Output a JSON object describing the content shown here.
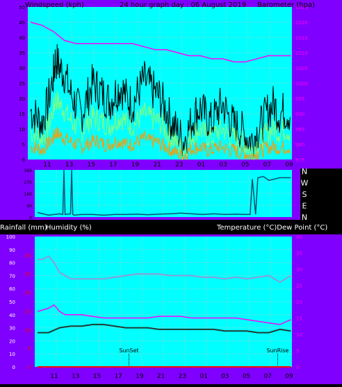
{
  "header": {
    "left_title": "Windspeed (kph)",
    "center_title": "24 hour graph day : 06 August 2019",
    "right_title": "Barometer (hpa)"
  },
  "colors": {
    "frame": "#8000ff",
    "plot_bg": "#00ffff",
    "grid": "#7fd8d8",
    "gust": "#000000",
    "wind": "#80ff80",
    "wind_low": "#ff9900",
    "baro": "#ff00ff",
    "dir": "#0b4f6c",
    "temp": "#8c9bd8",
    "dew": "#1f3a33",
    "humidity": "#ff00ff",
    "rain": "#ff0000",
    "tick_left": "#ffffff",
    "tick_red": "#ff0000"
  },
  "chart_data": [
    {
      "type": "line",
      "name": "wind-barometer",
      "x_ticks": [
        "11",
        "13",
        "15",
        "17",
        "19",
        "21",
        "23",
        "01",
        "03",
        "05",
        "07",
        "09"
      ],
      "y_left_range": [
        0,
        50
      ],
      "y_left_ticks": [
        "0",
        "5",
        "10",
        "15",
        "20",
        "25",
        "30",
        "35",
        "40",
        "45",
        "50"
      ],
      "y_right_range": [
        975,
        1025
      ],
      "y_right_ticks": [
        "975",
        "980",
        "985",
        "990",
        "995",
        "1000",
        "1005",
        "1010",
        "1015",
        "1020",
        "1025"
      ],
      "grid": true,
      "series": [
        {
          "key": "gust",
          "hours": [
            0,
            0.5,
            1,
            1.5,
            2,
            2.2,
            2.6,
            3,
            3.5,
            4,
            4.5,
            5,
            5.5,
            6,
            6.5,
            7,
            7.5,
            8,
            8.5,
            9,
            9.5,
            10,
            10.5,
            11,
            11.5,
            12,
            12.5,
            13,
            13.5,
            14,
            14.5,
            15,
            15.5,
            16,
            16.5,
            17,
            17.5,
            18,
            18.5,
            19,
            19.5,
            20,
            20.5,
            21,
            21.5,
            22,
            22.5,
            23
          ],
          "values": [
            16,
            14,
            12,
            18,
            27,
            33,
            30,
            28,
            22,
            18,
            15,
            20,
            25,
            23,
            21,
            19,
            22,
            24,
            20,
            18,
            22,
            26,
            24,
            22,
            20,
            16,
            12,
            9,
            6,
            10,
            15,
            17,
            14,
            12,
            16,
            18,
            14,
            11,
            10,
            8,
            6,
            9,
            12,
            16,
            18,
            15,
            16,
            15
          ]
        },
        {
          "key": "wind",
          "hours": [
            0,
            0.5,
            1,
            1.5,
            2,
            2.2,
            2.6,
            3,
            3.5,
            4,
            4.5,
            5,
            5.5,
            6,
            6.5,
            7,
            7.5,
            8,
            8.5,
            9,
            9.5,
            10,
            10.5,
            11,
            11.5,
            12,
            12.5,
            13,
            13.5,
            14,
            14.5,
            15,
            15.5,
            16,
            16.5,
            17,
            17.5,
            18,
            18.5,
            19,
            19.5,
            20,
            20.5,
            21,
            21.5,
            22,
            22.5,
            23
          ],
          "values": [
            9,
            8,
            7,
            10,
            16,
            20,
            18,
            16,
            13,
            11,
            9,
            12,
            14,
            13,
            12,
            11,
            13,
            14,
            12,
            11,
            13,
            15,
            14,
            13,
            12,
            9,
            7,
            5,
            3,
            6,
            9,
            10,
            8,
            7,
            9,
            10,
            8,
            7,
            6,
            5,
            3,
            5,
            7,
            9,
            10,
            9,
            10,
            9
          ]
        },
        {
          "key": "wind_low",
          "hours": [
            0,
            0.5,
            1,
            1.5,
            2,
            2.2,
            2.6,
            3,
            3.5,
            4,
            4.5,
            5,
            5.5,
            6,
            6.5,
            7,
            7.5,
            8,
            8.5,
            9,
            9.5,
            10,
            10.5,
            11,
            11.5,
            12,
            12.5,
            13,
            13.5,
            14,
            14.5,
            15,
            15.5,
            16,
            16.5,
            17,
            17.5,
            18,
            18.5,
            19,
            19.5,
            20,
            20.5,
            21,
            21.5,
            22,
            22.5,
            23
          ],
          "values": [
            4,
            4,
            3,
            5,
            7,
            9,
            8,
            7,
            6,
            5,
            4,
            5,
            6,
            6,
            5,
            5,
            6,
            6,
            5,
            5,
            6,
            7,
            6,
            6,
            5,
            4,
            3,
            2,
            1,
            3,
            4,
            4,
            3,
            3,
            4,
            4,
            3,
            3,
            2,
            2,
            1,
            2,
            3,
            4,
            4,
            4,
            4,
            4
          ]
        },
        {
          "key": "baro",
          "hours": [
            0,
            1,
            2,
            3,
            4,
            5,
            6,
            7,
            8,
            9,
            10,
            11,
            12,
            13,
            14,
            15,
            16,
            17,
            18,
            19,
            20,
            21,
            22,
            23
          ],
          "values": [
            1020,
            1019,
            1017,
            1014,
            1013,
            1013,
            1013,
            1013,
            1013,
            1013,
            1012,
            1011,
            1011,
            1010,
            1009,
            1009,
            1008,
            1008,
            1007,
            1007,
            1008,
            1009,
            1009,
            1009
          ]
        }
      ]
    },
    {
      "type": "line",
      "name": "wind-direction",
      "x_ticks": [
        "11",
        "13",
        "15",
        "17",
        "19",
        "21",
        "23",
        "01",
        "03",
        "05",
        "07",
        "09"
      ],
      "y_range": [
        0,
        360
      ],
      "y_ticks": [
        "0",
        "90",
        "180",
        "270",
        "360"
      ],
      "compass": [
        "N",
        "W",
        "S",
        "E",
        "N"
      ],
      "grid": true,
      "series": [
        {
          "key": "dir",
          "hours": [
            0,
            1,
            2,
            2.3,
            2.4,
            2.5,
            3,
            3.1,
            3.2,
            3.3,
            4,
            5,
            6,
            7,
            8,
            9,
            10,
            11,
            12,
            13,
            14,
            15,
            16,
            17,
            18,
            19,
            19.3,
            19.5,
            19.8,
            20,
            20.5,
            21,
            22,
            23
          ],
          "values": [
            35,
            15,
            25,
            20,
            360,
            20,
            25,
            360,
            20,
            15,
            20,
            20,
            15,
            20,
            20,
            22,
            18,
            22,
            25,
            30,
            25,
            20,
            25,
            20,
            22,
            20,
            20,
            290,
            20,
            300,
            310,
            280,
            300,
            300
          ]
        }
      ]
    },
    {
      "type": "line",
      "name": "temp-humidity-rain",
      "x_ticks": [
        "11",
        "13",
        "15",
        "17",
        "19",
        "21",
        "23",
        "01",
        "03",
        "05",
        "07",
        "09"
      ],
      "y_left_range": [
        0,
        100
      ],
      "y_left_ticks": [
        "0",
        "10",
        "20",
        "30",
        "40",
        "50",
        "60",
        "70",
        "80",
        "90",
        "100"
      ],
      "y_left2_ticks": [
        "0",
        "5",
        "10",
        "15",
        "20",
        "25",
        "30"
      ],
      "y_right_range": [
        0,
        40
      ],
      "y_right_ticks": [
        "0",
        "5",
        "10",
        "15",
        "20",
        "25",
        "30",
        "35",
        "40"
      ],
      "annotations": [
        {
          "label": "SunSet",
          "hour": 8.3
        },
        {
          "label": "SunRise",
          "hour": 21.8
        }
      ],
      "grid": true,
      "series": [
        {
          "key": "temp",
          "hours": [
            0,
            0.5,
            1,
            1.5,
            2,
            2.5,
            3,
            4,
            5,
            6,
            7,
            8,
            9,
            10,
            11,
            12,
            13,
            14,
            15,
            16,
            17,
            18,
            19,
            20,
            21,
            21.5,
            22,
            22.5,
            23
          ],
          "values": [
            33,
            33,
            34,
            32,
            29,
            28,
            27,
            27,
            27,
            27,
            27.5,
            28,
            28.5,
            28.5,
            28.5,
            28,
            28,
            28,
            27.5,
            27.5,
            27,
            27.5,
            27,
            27.5,
            28,
            27,
            26,
            27,
            28
          ]
        },
        {
          "key": "dew",
          "hours": [
            0,
            1,
            2,
            3,
            4,
            5,
            6,
            7,
            8,
            9,
            10,
            11,
            12,
            13,
            14,
            15,
            16,
            17,
            18,
            19,
            20,
            21,
            22,
            23
          ],
          "values": [
            10.5,
            10.5,
            12,
            12.5,
            12.5,
            13,
            13,
            12.5,
            12,
            12,
            12,
            11.5,
            11.5,
            11.5,
            11.5,
            11.5,
            11.5,
            11,
            11,
            11,
            10.5,
            10.5,
            11.5,
            11
          ]
        },
        {
          "key": "humidity",
          "hours": [
            0,
            1,
            1.5,
            2,
            2.5,
            3,
            4,
            5,
            6,
            7,
            8,
            9,
            10,
            11,
            12,
            13,
            14,
            15,
            16,
            17,
            18,
            19,
            20,
            21,
            22,
            23
          ],
          "values": [
            17,
            18,
            19,
            17,
            16,
            16,
            16,
            15.5,
            15,
            15,
            15,
            15,
            15,
            15.5,
            15.5,
            15.5,
            15,
            15,
            15,
            15,
            15,
            14.5,
            14,
            13.5,
            13,
            14.5
          ]
        },
        {
          "key": "rain",
          "hours": [
            0,
            23
          ],
          "values": [
            0,
            0
          ]
        }
      ]
    }
  ],
  "panels": {
    "bottom_left_label": "Rainfall (mm)",
    "bottom_humidity_label": "Humidity (%)",
    "bottom_right_label": "Temperature (°C)Dew Point (°C)"
  }
}
